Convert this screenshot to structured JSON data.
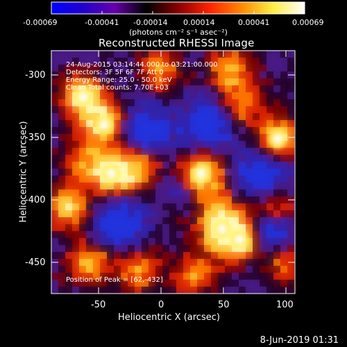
{
  "colorbar": {
    "ticks": [
      "-0.00069",
      "-0.00041",
      "-0.00014",
      "0.00014",
      "0.00041",
      "0.00069"
    ],
    "units": "(photons cm⁻² s⁻¹ asec⁻²)",
    "stops": [
      "#0000ff",
      "#2200cc",
      "#6600aa",
      "#000000",
      "#880000",
      "#ff2200",
      "#ff8800",
      "#ffee44",
      "#ffffff"
    ]
  },
  "image": {
    "title": "Reconstructed RHESSI Image",
    "annotations": [
      "24-Aug-2015 03:14:44.000 to 03:21:00.000",
      "Detectors: 3F 5F 6F 7F  Att 0",
      "Energy Range: 25.0 - 50.0 keV",
      "Clean     Total counts: 7.70E+03"
    ],
    "peak_label": "Position of Peak = [62,-432]"
  },
  "axes": {
    "xlabel": "Heliocentric X (arcsec)",
    "ylabel": "Heliocentric Y (arcsec)",
    "xticks": [
      "-50",
      "0",
      "50",
      "100"
    ],
    "yticks": [
      "-300",
      "-350",
      "-400",
      "-450"
    ]
  },
  "footer": {
    "timestamp": "8-Jun-2019 01:31"
  }
}
